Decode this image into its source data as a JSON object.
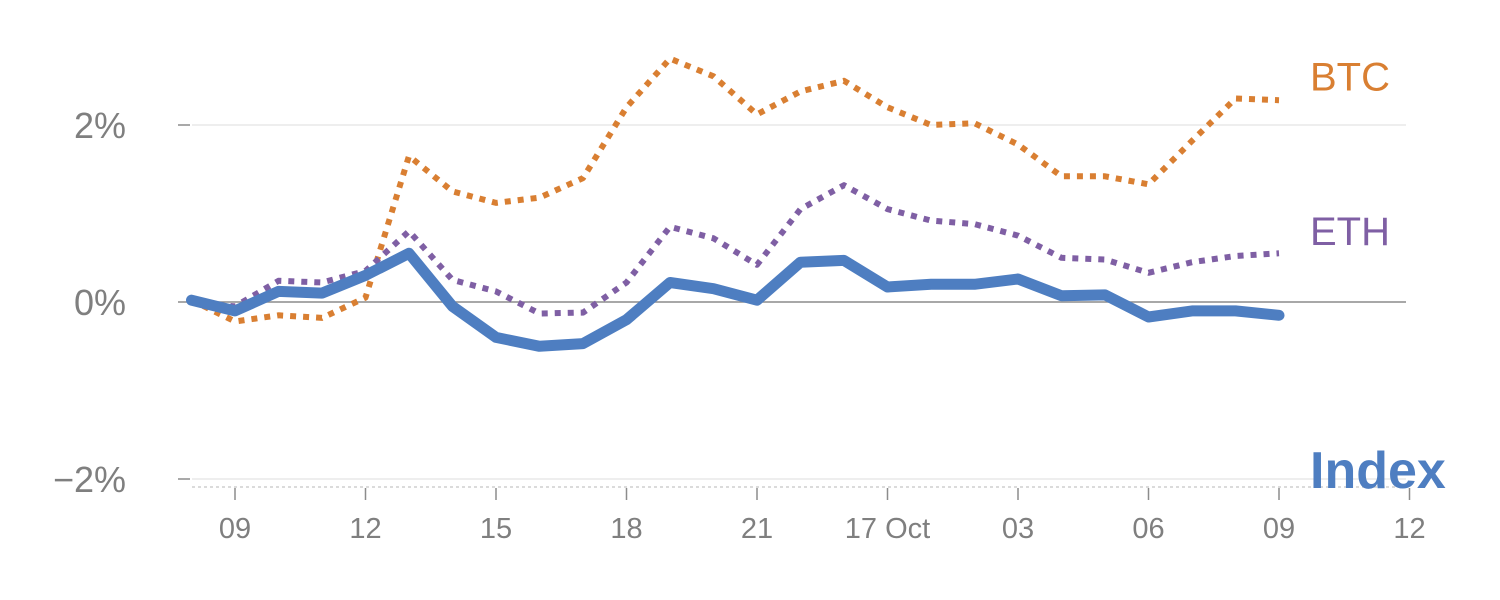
{
  "chart_data": {
    "type": "line",
    "title": "",
    "xlabel": "",
    "ylabel": "",
    "ylim": [
      -2.1,
      3.1
    ],
    "xlim": [
      -1,
      27
    ],
    "y_ticks": [
      {
        "value": 2,
        "label": "2%"
      },
      {
        "value": 0,
        "label": "0%"
      },
      {
        "value": -2,
        "label": "−2%"
      }
    ],
    "x_ticks": [
      {
        "x": 0,
        "label": "09"
      },
      {
        "x": 3,
        "label": "12"
      },
      {
        "x": 6,
        "label": "15"
      },
      {
        "x": 9,
        "label": "18"
      },
      {
        "x": 12,
        "label": "21"
      },
      {
        "x": 15,
        "label": "17 Oct"
      },
      {
        "x": 18,
        "label": "03"
      },
      {
        "x": 21,
        "label": "06"
      },
      {
        "x": 24,
        "label": "09"
      },
      {
        "x": 27,
        "label": "12"
      }
    ],
    "grid": true,
    "series": [
      {
        "name": "BTC",
        "color": "#d97f32",
        "style": "dotted",
        "points": [
          [
            -1,
            0.02
          ],
          [
            0,
            -0.22
          ],
          [
            1,
            -0.15
          ],
          [
            2,
            -0.18
          ],
          [
            3,
            0.05
          ],
          [
            4,
            1.65
          ],
          [
            5,
            1.25
          ],
          [
            6,
            1.12
          ],
          [
            7,
            1.18
          ],
          [
            8,
            1.4
          ],
          [
            9,
            2.2
          ],
          [
            10,
            2.75
          ],
          [
            11,
            2.55
          ],
          [
            12,
            2.12
          ],
          [
            13,
            2.38
          ],
          [
            14,
            2.5
          ],
          [
            15,
            2.2
          ],
          [
            16,
            2.0
          ],
          [
            17,
            2.02
          ],
          [
            18,
            1.78
          ],
          [
            19,
            1.42
          ],
          [
            20,
            1.42
          ],
          [
            21,
            1.33
          ],
          [
            22,
            1.82
          ],
          [
            23,
            2.3
          ],
          [
            24,
            2.28
          ]
        ]
      },
      {
        "name": "ETH",
        "color": "#7f5fa4",
        "style": "dotted",
        "points": [
          [
            -1,
            0.0
          ],
          [
            0,
            -0.05
          ],
          [
            1,
            0.24
          ],
          [
            2,
            0.22
          ],
          [
            3,
            0.35
          ],
          [
            4,
            0.8
          ],
          [
            5,
            0.25
          ],
          [
            6,
            0.12
          ],
          [
            7,
            -0.13
          ],
          [
            8,
            -0.12
          ],
          [
            9,
            0.22
          ],
          [
            10,
            0.85
          ],
          [
            11,
            0.72
          ],
          [
            12,
            0.42
          ],
          [
            13,
            1.05
          ],
          [
            14,
            1.32
          ],
          [
            15,
            1.05
          ],
          [
            16,
            0.92
          ],
          [
            17,
            0.88
          ],
          [
            18,
            0.75
          ],
          [
            19,
            0.5
          ],
          [
            20,
            0.48
          ],
          [
            21,
            0.33
          ],
          [
            22,
            0.45
          ],
          [
            23,
            0.52
          ],
          [
            24,
            0.55
          ]
        ]
      },
      {
        "name": "Index",
        "color": "#4e7ec1",
        "style": "solid",
        "points": [
          [
            -1,
            0.02
          ],
          [
            0,
            -0.1
          ],
          [
            1,
            0.12
          ],
          [
            2,
            0.1
          ],
          [
            3,
            0.3
          ],
          [
            4,
            0.55
          ],
          [
            5,
            -0.05
          ],
          [
            6,
            -0.4
          ],
          [
            7,
            -0.5
          ],
          [
            8,
            -0.47
          ],
          [
            9,
            -0.2
          ],
          [
            10,
            0.22
          ],
          [
            11,
            0.15
          ],
          [
            12,
            0.02
          ],
          [
            13,
            0.45
          ],
          [
            14,
            0.47
          ],
          [
            15,
            0.17
          ],
          [
            16,
            0.2
          ],
          [
            17,
            0.2
          ],
          [
            18,
            0.26
          ],
          [
            19,
            0.07
          ],
          [
            20,
            0.08
          ],
          [
            21,
            -0.17
          ],
          [
            22,
            -0.1
          ],
          [
            23,
            -0.1
          ],
          [
            24,
            -0.15
          ]
        ]
      }
    ],
    "end_labels": [
      {
        "series": "BTC",
        "text": "BTC",
        "color": "#d97f32",
        "y": 2.55
      },
      {
        "series": "ETH",
        "text": "ETH",
        "color": "#7f5fa4",
        "y": 0.8
      },
      {
        "series": "Index",
        "text": "Index",
        "color": "#4e7ec1",
        "y": -1.9
      }
    ]
  }
}
